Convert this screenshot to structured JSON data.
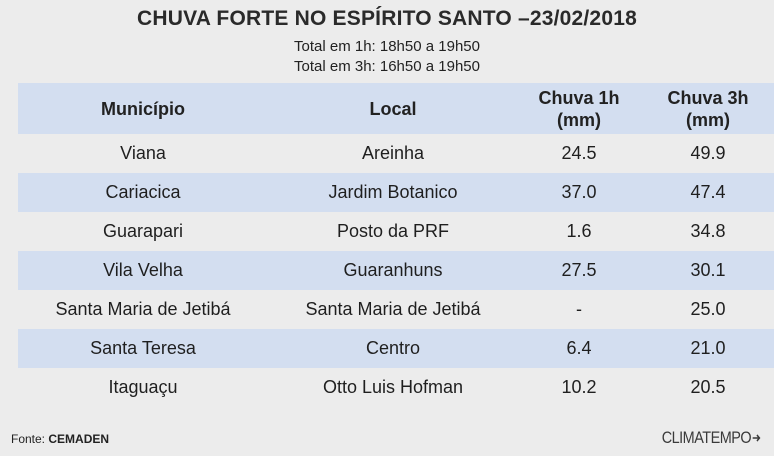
{
  "header": {
    "title": "CHUVA FORTE NO ESPÍRITO SANTO –23/02/2018",
    "subtitle_1": "Total em 1h: 18h50 a 19h50",
    "subtitle_2": "Total em 3h: 16h50 a 19h50"
  },
  "table": {
    "columns": [
      "Município",
      "Local",
      "Chuva 1h (mm)",
      "Chuva 3h (mm)"
    ],
    "columns_split": [
      [
        "Município"
      ],
      [
        "Local"
      ],
      [
        "Chuva 1h",
        "(mm)"
      ],
      [
        "Chuva 3h",
        "(mm)"
      ]
    ],
    "rows": [
      [
        "Viana",
        "Areinha",
        "24.5",
        "49.9"
      ],
      [
        "Cariacica",
        "Jardim Botanico",
        "37.0",
        "47.4"
      ],
      [
        "Guarapari",
        "Posto da PRF",
        "1.6",
        "34.8"
      ],
      [
        "Vila Velha",
        "Guaranhuns",
        "27.5",
        "30.1"
      ],
      [
        "Santa Maria de Jetibá",
        "Santa Maria de Jetibá",
        "-",
        "25.0"
      ],
      [
        "Santa Teresa",
        "Centro",
        "6.4",
        "21.0"
      ],
      [
        "Itaguaçu",
        "Otto Luis Hofman",
        "10.2",
        "20.5"
      ]
    ]
  },
  "footer": {
    "source_label": "Fonte: ",
    "source_name": "CEMADEN",
    "brand": "CLIMATEMPO",
    "brand_icon": "arrow-mark-icon"
  },
  "colors": {
    "background": "#ececec",
    "stripe": "#d3def0"
  }
}
